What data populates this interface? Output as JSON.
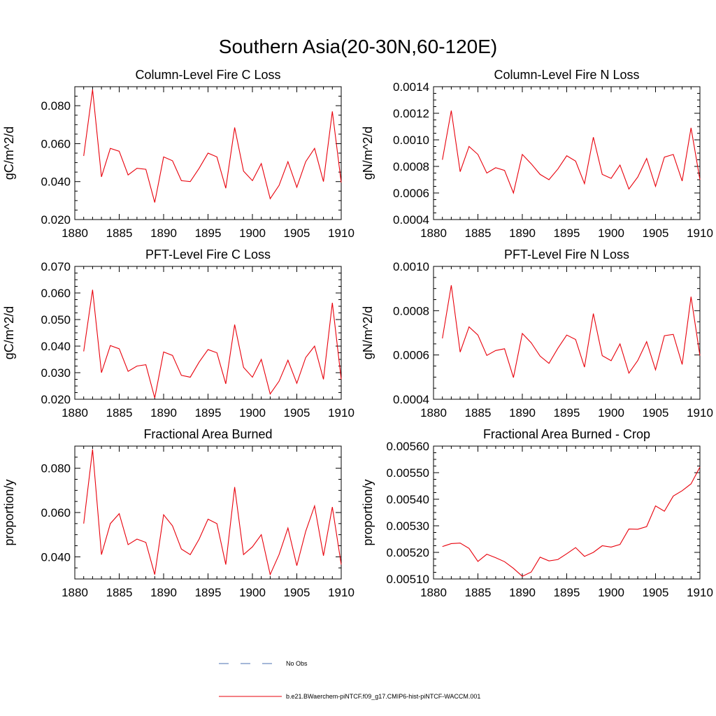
{
  "title": "Southern Asia(20-30N,60-120E)",
  "legend": {
    "items": [
      {
        "label": "No Obs",
        "color": "#4a6fb0",
        "dash": "dashed"
      },
      {
        "label": "b.e21.BWaerchem-piNTCF.f09_g17.CMIP6-hist-piNTCF-WACCM.001",
        "color": "#e8000b",
        "dash": "solid"
      }
    ]
  },
  "chart_data": [
    {
      "type": "line",
      "title": "Column-Level Fire C Loss",
      "ylabel": "gC/m^2/d",
      "xlim": [
        1880,
        1910
      ],
      "ylim": [
        0.02,
        0.09
      ],
      "xticks": [
        1880,
        1885,
        1890,
        1895,
        1900,
        1905,
        1910
      ],
      "xtick_labels": [
        "1880",
        "1885",
        "1890",
        "1895",
        "1900",
        "1905",
        "1910"
      ],
      "yticks": [
        0.02,
        0.04,
        0.06,
        0.08
      ],
      "ytick_labels": [
        "0.020",
        "0.040",
        "0.060",
        "0.080"
      ],
      "yminor": 0.005,
      "series": [
        {
          "color": "#e8000b",
          "x": [
            1881,
            1882,
            1883,
            1884,
            1885,
            1886,
            1887,
            1888,
            1889,
            1890,
            1891,
            1892,
            1893,
            1894,
            1895,
            1896,
            1897,
            1898,
            1899,
            1900,
            1901,
            1902,
            1903,
            1904,
            1905,
            1906,
            1907,
            1908,
            1909,
            1910
          ],
          "values": [
            0.0535,
            0.0885,
            0.0425,
            0.0575,
            0.056,
            0.0435,
            0.047,
            0.0465,
            0.029,
            0.053,
            0.051,
            0.0405,
            0.04,
            0.047,
            0.055,
            0.053,
            0.0365,
            0.0685,
            0.0455,
            0.0405,
            0.0495,
            0.031,
            0.038,
            0.0505,
            0.037,
            0.0505,
            0.0575,
            0.04,
            0.077,
            0.0395
          ]
        }
      ]
    },
    {
      "type": "line",
      "title": "Column-Level Fire N Loss",
      "ylabel": "gN/m^2/d",
      "xlim": [
        1880,
        1910
      ],
      "ylim": [
        0.0004,
        0.0014
      ],
      "xticks": [
        1880,
        1885,
        1890,
        1895,
        1900,
        1905,
        1910
      ],
      "xtick_labels": [
        "1880",
        "1885",
        "1890",
        "1895",
        "1900",
        "1905",
        "1910"
      ],
      "yticks": [
        0.0004,
        0.0006,
        0.0008,
        0.001,
        0.0012,
        0.0014
      ],
      "ytick_labels": [
        "0.0004",
        "0.0006",
        "0.0008",
        "0.0010",
        "0.0012",
        "0.0014"
      ],
      "yminor": 5e-05,
      "series": [
        {
          "color": "#e8000b",
          "x": [
            1881,
            1882,
            1883,
            1884,
            1885,
            1886,
            1887,
            1888,
            1889,
            1890,
            1891,
            1892,
            1893,
            1894,
            1895,
            1896,
            1897,
            1898,
            1899,
            1900,
            1901,
            1902,
            1903,
            1904,
            1905,
            1906,
            1907,
            1908,
            1909,
            1910
          ],
          "values": [
            0.00085,
            0.00122,
            0.00076,
            0.00095,
            0.00089,
            0.00075,
            0.00079,
            0.00077,
            0.0006,
            0.00089,
            0.00082,
            0.00074,
            0.0007,
            0.00078,
            0.00088,
            0.00084,
            0.00067,
            0.00102,
            0.00074,
            0.00071,
            0.00081,
            0.00063,
            0.00072,
            0.00086,
            0.00065,
            0.00087,
            0.00089,
            0.00069,
            0.00109,
            0.0007
          ]
        }
      ]
    },
    {
      "type": "line",
      "title": "PFT-Level Fire C Loss",
      "ylabel": "gC/m^2/d",
      "xlim": [
        1880,
        1910
      ],
      "ylim": [
        0.02,
        0.07
      ],
      "xticks": [
        1880,
        1885,
        1890,
        1895,
        1900,
        1905,
        1910
      ],
      "xtick_labels": [
        "1880",
        "1885",
        "1890",
        "1895",
        "1900",
        "1905",
        "1910"
      ],
      "yticks": [
        0.02,
        0.03,
        0.04,
        0.05,
        0.06,
        0.07
      ],
      "ytick_labels": [
        "0.020",
        "0.030",
        "0.040",
        "0.050",
        "0.060",
        "0.070"
      ],
      "yminor": 0.0025,
      "series": [
        {
          "color": "#e8000b",
          "x": [
            1881,
            1882,
            1883,
            1884,
            1885,
            1886,
            1887,
            1888,
            1889,
            1890,
            1891,
            1892,
            1893,
            1894,
            1895,
            1896,
            1897,
            1898,
            1899,
            1900,
            1901,
            1902,
            1903,
            1904,
            1905,
            1906,
            1907,
            1908,
            1909,
            1910
          ],
          "values": [
            0.038,
            0.0612,
            0.03,
            0.0402,
            0.039,
            0.0305,
            0.0325,
            0.033,
            0.0205,
            0.0378,
            0.0365,
            0.029,
            0.0283,
            0.034,
            0.0387,
            0.0375,
            0.0258,
            0.0481,
            0.032,
            0.0283,
            0.035,
            0.022,
            0.0268,
            0.0347,
            0.026,
            0.0357,
            0.04,
            0.0275,
            0.0563,
            0.0275
          ]
        }
      ]
    },
    {
      "type": "line",
      "title": "PFT-Level Fire N Loss",
      "ylabel": "gN/m^2/d",
      "xlim": [
        1880,
        1910
      ],
      "ylim": [
        0.0004,
        0.001
      ],
      "xticks": [
        1880,
        1885,
        1890,
        1895,
        1900,
        1905,
        1910
      ],
      "xtick_labels": [
        "1880",
        "1885",
        "1890",
        "1895",
        "1900",
        "1905",
        "1910"
      ],
      "yticks": [
        0.0004,
        0.0006,
        0.0008,
        0.001
      ],
      "ytick_labels": [
        "0.0004",
        "0.0006",
        "0.0008",
        "0.0010"
      ],
      "yminor": 5e-05,
      "series": [
        {
          "color": "#e8000b",
          "x": [
            1881,
            1882,
            1883,
            1884,
            1885,
            1886,
            1887,
            1888,
            1889,
            1890,
            1891,
            1892,
            1893,
            1894,
            1895,
            1896,
            1897,
            1898,
            1899,
            1900,
            1901,
            1902,
            1903,
            1904,
            1905,
            1906,
            1907,
            1908,
            1909,
            1910
          ],
          "values": [
            0.000675,
            0.000915,
            0.000613,
            0.000727,
            0.00069,
            0.000598,
            0.00062,
            0.000628,
            0.000498,
            0.000697,
            0.000655,
            0.000595,
            0.000562,
            0.00063,
            0.00069,
            0.00067,
            0.000545,
            0.000787,
            0.000597,
            0.000574,
            0.00065,
            0.000518,
            0.000575,
            0.00066,
            0.000533,
            0.000687,
            0.000693,
            0.000557,
            0.000863,
            0.000597
          ]
        }
      ]
    },
    {
      "type": "line",
      "title": "Fractional Area Burned",
      "ylabel": "proportion/y",
      "xlim": [
        1880,
        1910
      ],
      "ylim": [
        0.03,
        0.09
      ],
      "xticks": [
        1880,
        1885,
        1890,
        1895,
        1900,
        1905,
        1910
      ],
      "xtick_labels": [
        "1880",
        "1885",
        "1890",
        "1895",
        "1900",
        "1905",
        "1910"
      ],
      "yticks": [
        0.04,
        0.06,
        0.08
      ],
      "ytick_labels": [
        "0.040",
        "0.060",
        "0.080"
      ],
      "yminor": 0.005,
      "series": [
        {
          "color": "#e8000b",
          "x": [
            1881,
            1882,
            1883,
            1884,
            1885,
            1886,
            1887,
            1888,
            1889,
            1890,
            1891,
            1892,
            1893,
            1894,
            1895,
            1896,
            1897,
            1898,
            1899,
            1900,
            1901,
            1902,
            1903,
            1904,
            1905,
            1906,
            1907,
            1908,
            1909,
            1910
          ],
          "values": [
            0.055,
            0.0885,
            0.041,
            0.055,
            0.0595,
            0.0455,
            0.048,
            0.0465,
            0.032,
            0.059,
            0.054,
            0.0435,
            0.041,
            0.048,
            0.057,
            0.055,
            0.0365,
            0.0715,
            0.041,
            0.0445,
            0.05,
            0.032,
            0.041,
            0.053,
            0.036,
            0.0515,
            0.063,
            0.0405,
            0.0625,
            0.0365
          ]
        }
      ]
    },
    {
      "type": "line",
      "title": "Fractional Area Burned - Crop",
      "ylabel": "proportion/y",
      "xlim": [
        1880,
        1910
      ],
      "ylim": [
        0.0051,
        0.0056
      ],
      "xticks": [
        1880,
        1885,
        1890,
        1895,
        1900,
        1905,
        1910
      ],
      "xtick_labels": [
        "1880",
        "1885",
        "1890",
        "1895",
        "1900",
        "1905",
        "1910"
      ],
      "yticks": [
        0.0051,
        0.0052,
        0.0053,
        0.0054,
        0.0055,
        0.0056
      ],
      "ytick_labels": [
        "0.00510",
        "0.00520",
        "0.00530",
        "0.00540",
        "0.00550",
        "0.00560"
      ],
      "yminor": 2.5e-05,
      "series": [
        {
          "color": "#e8000b",
          "x": [
            1881,
            1882,
            1883,
            1884,
            1885,
            1886,
            1887,
            1888,
            1889,
            1890,
            1891,
            1892,
            1893,
            1894,
            1895,
            1896,
            1897,
            1898,
            1899,
            1900,
            1901,
            1902,
            1903,
            1904,
            1905,
            1906,
            1907,
            1908,
            1909,
            1910
          ],
          "values": [
            0.005222,
            0.005233,
            0.005235,
            0.005215,
            0.005166,
            0.005193,
            0.00518,
            0.005165,
            0.00514,
            0.00511,
            0.005126,
            0.005182,
            0.005168,
            0.005173,
            0.005195,
            0.005218,
            0.005185,
            0.0052,
            0.005225,
            0.00522,
            0.00523,
            0.005288,
            0.005287,
            0.005297,
            0.005375,
            0.005355,
            0.005412,
            0.005432,
            0.005458,
            0.005521
          ]
        }
      ]
    }
  ]
}
